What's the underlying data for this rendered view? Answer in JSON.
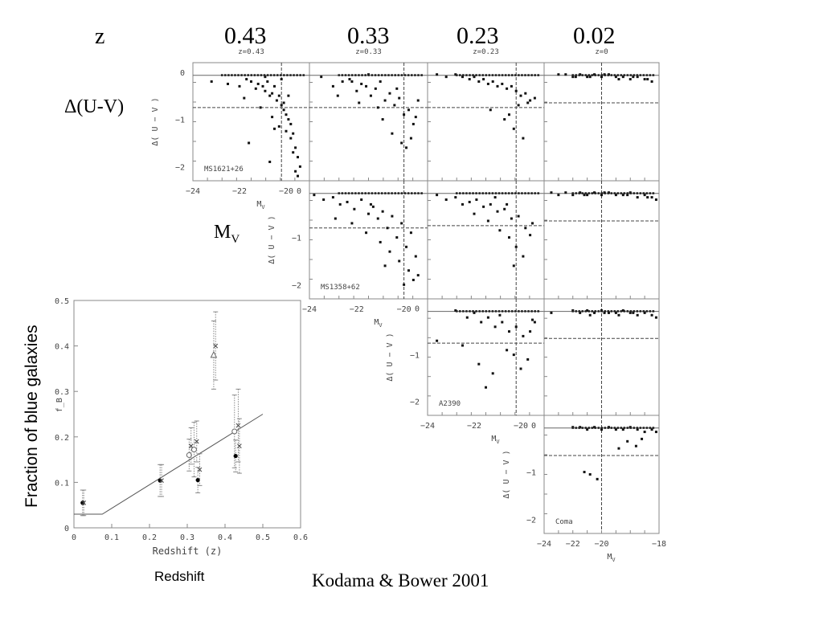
{
  "header": {
    "z_label": "z",
    "redshifts": [
      "0.43",
      "0.33",
      "0.23",
      "0.02"
    ],
    "panel_z_labels": [
      "z=0.43",
      "z=0.33",
      "z=0.23",
      "z=0"
    ]
  },
  "side_labels": {
    "delta_uv": "Δ(U-V)",
    "mv_main": "M",
    "mv_sub": "V"
  },
  "footer": {
    "citation": "Kodama  & Bower 2001",
    "redshift_caption": "Redshift"
  },
  "panel_axes": {
    "ylabel": "Δ( U − V )",
    "xlabel": "M",
    "xlabel_sub": "V",
    "yticks": [
      "0",
      "−1",
      "−2"
    ],
    "xticks": [
      "−24",
      "−22",
      "−20",
      "−18"
    ]
  },
  "clusters": [
    {
      "name": "MS1621+26",
      "z": "0.43"
    },
    {
      "name": "MS1358+62",
      "z": "0.33"
    },
    {
      "name": "A2390",
      "z": "0.23"
    },
    {
      "name": "Coma",
      "z": "0.02"
    }
  ],
  "chart_data": [
    {
      "type": "scatter",
      "xlabel": "Redshift (z)",
      "ylabel": "Fraction of blue galaxies",
      "ylabel_inner": "f_B",
      "xlim": [
        0,
        0.6
      ],
      "ylim": [
        0,
        0.5
      ],
      "xticks": [
        "0",
        "0.1",
        "0.2",
        "0.3",
        "0.4",
        "0.5",
        "0.6"
      ],
      "yticks": [
        "0",
        "0.1",
        "0.2",
        "0.3",
        "0.4",
        "0.5"
      ],
      "points": [
        {
          "x": 0.023,
          "y": 0.055,
          "err": 0.028,
          "marker": "filled-circle"
        },
        {
          "x": 0.026,
          "y": 0.055,
          "err": 0.028,
          "marker": "cross"
        },
        {
          "x": 0.228,
          "y": 0.104,
          "err": 0.035,
          "marker": "filled-circle"
        },
        {
          "x": 0.232,
          "y": 0.104,
          "err": 0.035,
          "marker": "cross"
        },
        {
          "x": 0.305,
          "y": 0.16,
          "err": 0.035,
          "marker": "open-circle"
        },
        {
          "x": 0.31,
          "y": 0.18,
          "err": 0.04,
          "marker": "cross"
        },
        {
          "x": 0.318,
          "y": 0.172,
          "err": 0.06,
          "marker": "open-circle"
        },
        {
          "x": 0.325,
          "y": 0.19,
          "err": 0.045,
          "marker": "cross"
        },
        {
          "x": 0.328,
          "y": 0.105,
          "err": 0.028,
          "marker": "filled-circle"
        },
        {
          "x": 0.333,
          "y": 0.128,
          "err": 0.035,
          "marker": "cross"
        },
        {
          "x": 0.37,
          "y": 0.38,
          "err": 0.075,
          "marker": "open-triangle"
        },
        {
          "x": 0.375,
          "y": 0.4,
          "err": 0.075,
          "marker": "cross"
        },
        {
          "x": 0.425,
          "y": 0.212,
          "err": 0.08,
          "marker": "open-circle"
        },
        {
          "x": 0.428,
          "y": 0.158,
          "err": 0.035,
          "marker": "filled-circle"
        },
        {
          "x": 0.435,
          "y": 0.225,
          "err": 0.08,
          "marker": "cross"
        },
        {
          "x": 0.438,
          "y": 0.18,
          "err": 0.06,
          "marker": "cross"
        }
      ],
      "model_line": {
        "x": [
          0.0,
          0.075,
          0.5
        ],
        "y": [
          0.03,
          0.03,
          0.25
        ]
      }
    },
    {
      "type": "scatter",
      "title": "MS1621+26",
      "z_label": "z=0.43",
      "xlabel": "M_V",
      "ylabel": "Δ(U−V)",
      "xlim": [
        -24,
        -19
      ],
      "ylim": [
        -2.3,
        0.2
      ],
      "x": [
        -23.2,
        -22.5,
        -22.0,
        -21.7,
        -21.5,
        -21.3,
        -21.2,
        -21.0,
        -20.9,
        -20.8,
        -20.7,
        -20.6,
        -20.5,
        -20.4,
        -20.3,
        -20.2,
        -20.1,
        -20.0,
        -19.9,
        -19.8,
        -19.7,
        -19.6,
        -19.5,
        -19.4,
        -21.8,
        -21.1,
        -20.6,
        -20.3,
        -20.0,
        -19.8,
        -19.6,
        -20.9,
        -20.2,
        -19.9,
        -19.7,
        -20.5,
        -19.5,
        -21.6,
        -20.7,
        -20.1
      ],
      "y": [
        -0.2,
        -0.25,
        -0.3,
        -0.15,
        -0.2,
        -0.35,
        -0.25,
        -0.3,
        -0.4,
        -0.2,
        -0.5,
        -0.45,
        -0.3,
        -0.6,
        -0.5,
        -0.7,
        -0.8,
        -0.9,
        -1.0,
        -1.1,
        -1.3,
        -1.6,
        -1.8,
        -2.0,
        -0.55,
        -0.75,
        -0.95,
        -1.15,
        -1.25,
        -1.4,
        -2.1,
        -0.1,
        -0.15,
        -0.5,
        -1.7,
        -1.2,
        -2.2,
        -1.5,
        -1.9,
        -0.65
      ],
      "red_sequence_y": 0.0,
      "blue_cut_y": -0.75,
      "mag_limit_x": -20.2
    },
    {
      "type": "scatter",
      "title": "",
      "z_label": "z=0.33",
      "xlabel": "M_V",
      "ylabel": "Δ(U−V)",
      "xlim": [
        -24,
        -19
      ],
      "ylim": [
        -2.3,
        0.2
      ],
      "x": [
        -23.5,
        -23.0,
        -22.6,
        -22.3,
        -22.0,
        -21.8,
        -21.6,
        -21.4,
        -21.2,
        -21.0,
        -20.8,
        -20.6,
        -20.4,
        -20.2,
        -20.0,
        -19.8,
        -19.6,
        -19.4,
        -22.8,
        -21.9,
        -21.1,
        -20.5,
        -20.1,
        -19.7,
        -21.5,
        -20.9,
        -20.3,
        -19.9,
        -19.5,
        -22.2
      ],
      "y": [
        -0.1,
        -0.3,
        -0.2,
        -0.15,
        -0.4,
        -0.25,
        -0.3,
        -0.5,
        -0.35,
        -0.2,
        -0.6,
        -0.45,
        -0.7,
        -0.55,
        -0.9,
        -0.8,
        -1.1,
        -0.6,
        -0.5,
        -0.65,
        -0.75,
        -1.3,
        -1.5,
        -1.4,
        -0.05,
        -1.0,
        -0.35,
        -1.6,
        -0.95,
        -0.2
      ],
      "red_sequence_y": 0.0,
      "blue_cut_y": -0.75,
      "mag_limit_x": -20.0
    },
    {
      "type": "scatter",
      "title": "",
      "z_label": "z=0.23",
      "xlabel": "M_V",
      "ylabel": "Δ(U−V)",
      "xlim": [
        -24,
        -19
      ],
      "ylim": [
        -2.3,
        0.2
      ],
      "x": [
        -23.6,
        -23.2,
        -22.8,
        -22.5,
        -22.2,
        -22.0,
        -21.8,
        -21.6,
        -21.4,
        -21.2,
        -21.0,
        -20.8,
        -20.6,
        -20.4,
        -20.2,
        -20.0,
        -19.8,
        -19.6,
        -19.4,
        -21.3,
        -20.7,
        -20.3,
        -20.1,
        -19.9,
        -19.7,
        -20.5
      ],
      "y": [
        -0.05,
        -0.1,
        -0.05,
        -0.1,
        -0.15,
        -0.1,
        -0.2,
        -0.15,
        -0.25,
        -0.2,
        -0.3,
        -0.25,
        -0.35,
        -0.3,
        -0.4,
        -0.5,
        -0.45,
        -0.6,
        -0.55,
        -0.8,
        -1.0,
        -1.2,
        -0.7,
        -1.4,
        -0.65,
        -0.9
      ],
      "red_sequence_y": 0.0,
      "blue_cut_y": -0.75,
      "mag_limit_x": -20.2
    },
    {
      "type": "scatter",
      "title": "",
      "z_label": "z=0",
      "xlabel": "M_V",
      "ylabel": "Δ(U−V)",
      "xlim": [
        -24,
        -16
      ],
      "ylim": [
        -2.3,
        0.2
      ],
      "x": [
        -23.0,
        -22.5,
        -22.0,
        -21.5,
        -21.0,
        -20.5,
        -20.0,
        -19.5,
        -19.0,
        -18.5,
        -18.0,
        -17.5,
        -17.0,
        -16.5,
        -21.8,
        -20.8,
        -19.8,
        -18.8,
        -17.8,
        -16.8
      ],
      "y": [
        -0.05,
        -0.05,
        -0.1,
        -0.05,
        -0.1,
        -0.05,
        -0.1,
        -0.05,
        -0.1,
        -0.1,
        -0.15,
        -0.1,
        -0.15,
        -0.2,
        -0.1,
        -0.1,
        -0.05,
        -0.15,
        -0.1,
        -0.15
      ],
      "red_sequence_y": 0.0,
      "blue_cut_y": -0.65,
      "mag_limit_x": -20.0
    },
    {
      "type": "scatter",
      "title": "MS1358+62",
      "z_label": "",
      "xlabel": "M_V",
      "ylabel": "Δ(U−V)",
      "xlim": [
        -24,
        -19
      ],
      "ylim": [
        -2.3,
        0.2
      ],
      "x": [
        -23.8,
        -23.4,
        -23.0,
        -22.7,
        -22.4,
        -22.1,
        -21.8,
        -21.5,
        -21.3,
        -21.1,
        -20.9,
        -20.7,
        -20.5,
        -20.3,
        -20.1,
        -19.9,
        -19.7,
        -19.5,
        -22.9,
        -22.2,
        -21.6,
        -21.0,
        -20.6,
        -20.2,
        -19.8,
        -19.6,
        -21.4,
        -20.8,
        -20.0,
        -19.4
      ],
      "y": [
        -0.1,
        -0.2,
        -0.15,
        -0.3,
        -0.25,
        -0.4,
        -0.2,
        -0.5,
        -0.35,
        -0.6,
        -0.45,
        -0.8,
        -0.55,
        -1.0,
        -0.7,
        -1.2,
        -0.9,
        -1.4,
        -0.6,
        -0.7,
        -0.9,
        -1.1,
        -1.3,
        -1.5,
        -1.7,
        -1.9,
        -0.3,
        -1.6,
        -2.0,
        -1.8
      ],
      "red_sequence_y": 0.0,
      "blue_cut_y": -0.8,
      "mag_limit_x": -20.0
    },
    {
      "type": "scatter",
      "title": "",
      "z_label": "",
      "xlabel": "M_V",
      "ylabel": "Δ(U−V)",
      "xlim": [
        -24,
        -19
      ],
      "ylim": [
        -2.3,
        0.2
      ],
      "x": [
        -23.6,
        -23.2,
        -22.8,
        -22.5,
        -22.2,
        -21.9,
        -21.6,
        -21.3,
        -21.0,
        -20.7,
        -20.4,
        -20.1,
        -19.8,
        -19.5,
        -22.0,
        -21.4,
        -20.9,
        -20.5,
        -20.2,
        -19.9,
        -19.6,
        -21.1,
        -20.6,
        -20.3
      ],
      "y": [
        -0.1,
        -0.2,
        -0.15,
        -0.3,
        -0.25,
        -0.2,
        -0.35,
        -0.3,
        -0.45,
        -0.4,
        -0.6,
        -0.55,
        -0.8,
        -0.7,
        -0.5,
        -0.65,
        -0.85,
        -1.0,
        -1.2,
        -1.4,
        -0.95,
        -0.15,
        -0.3,
        -1.6
      ],
      "red_sequence_y": 0.0,
      "blue_cut_y": -0.75,
      "mag_limit_x": -20.2
    },
    {
      "type": "scatter",
      "title": "",
      "z_label": "",
      "xlabel": "M_V",
      "ylabel": "Δ(U−V)",
      "xlim": [
        -24,
        -16
      ],
      "ylim": [
        -2.3,
        0.2
      ],
      "x": [
        -23.5,
        -23.0,
        -22.5,
        -22.0,
        -21.5,
        -21.0,
        -20.5,
        -20.0,
        -19.5,
        -19.0,
        -18.5,
        -18.0,
        -17.5,
        -17.0,
        -16.5,
        -16.2,
        -21.2,
        -19.8,
        -18.2,
        -16.8
      ],
      "y": [
        -0.05,
        -0.1,
        -0.05,
        -0.1,
        -0.05,
        -0.1,
        -0.05,
        -0.1,
        -0.05,
        -0.1,
        -0.1,
        -0.05,
        -0.15,
        -0.1,
        -0.15,
        -0.2,
        -0.1,
        -0.05,
        -0.1,
        -0.15
      ],
      "red_sequence_y": 0.0,
      "blue_cut_y": -0.65,
      "mag_limit_x": -20.0
    },
    {
      "type": "scatter",
      "title": "A2390",
      "z_label": "",
      "xlabel": "M_V",
      "ylabel": "Δ(U−V)",
      "xlim": [
        -24,
        -19
      ],
      "ylim": [
        -2.3,
        0.2
      ],
      "x": [
        -23.6,
        -22.8,
        -22.3,
        -22.0,
        -21.7,
        -21.4,
        -21.1,
        -20.8,
        -20.5,
        -20.2,
        -19.9,
        -19.6,
        -19.4,
        -22.5,
        -21.8,
        -21.2,
        -20.6,
        -20.3,
        -20.0,
        -19.7,
        -21.5,
        -20.9,
        -19.5
      ],
      "y": [
        -0.7,
        -0.05,
        -0.2,
        -0.1,
        -0.3,
        -0.2,
        -0.4,
        -0.3,
        -0.5,
        -0.4,
        -0.6,
        -0.5,
        -0.3,
        -0.8,
        -1.2,
        -1.4,
        -0.9,
        -1.0,
        -1.3,
        -1.1,
        -1.7,
        -0.15,
        -0.25
      ],
      "red_sequence_y": 0.0,
      "blue_cut_y": -0.75,
      "mag_limit_x": -20.2
    },
    {
      "type": "scatter",
      "title": "",
      "z_label": "",
      "xlabel": "M_V",
      "ylabel": "Δ(U−V)",
      "xlim": [
        -24,
        -16
      ],
      "ylim": [
        -2.3,
        0.2
      ],
      "x": [
        -23.5,
        -22.0,
        -21.5,
        -21.0,
        -20.5,
        -20.0,
        -19.5,
        -19.0,
        -18.5,
        -18.0,
        -17.5,
        -17.0,
        -16.5,
        -16.2,
        -20.8,
        -19.8,
        -18.8,
        -17.8
      ],
      "y": [
        -0.1,
        -0.05,
        -0.1,
        -0.05,
        -0.1,
        -0.05,
        -0.1,
        -0.1,
        -0.05,
        -0.1,
        -0.15,
        -0.1,
        -0.15,
        -0.2,
        -0.15,
        -0.1,
        -0.15,
        -0.1
      ],
      "red_sequence_y": 0.0,
      "blue_cut_y": -0.65,
      "mag_limit_x": -20.0
    },
    {
      "type": "scatter",
      "title": "Coma",
      "z_label": "",
      "xlabel": "M_V",
      "ylabel": "Δ(U−V)",
      "xlim": [
        -24,
        -16
      ],
      "ylim": [
        -2.3,
        0.2
      ],
      "x": [
        -22.0,
        -21.5,
        -21.0,
        -20.5,
        -20.0,
        -19.5,
        -19.0,
        -18.5,
        -18.0,
        -17.5,
        -17.0,
        -16.5,
        -16.2,
        -21.2,
        -20.8,
        -20.3,
        -18.8,
        -18.2,
        -17.6,
        -17.2
      ],
      "y": [
        -0.05,
        -0.05,
        -0.1,
        -0.05,
        -0.1,
        -0.05,
        -0.1,
        -0.1,
        -0.05,
        -0.1,
        -0.15,
        -0.1,
        -0.15,
        -1.0,
        -1.05,
        -1.15,
        -0.5,
        -0.35,
        -0.45,
        -0.3
      ],
      "red_sequence_y": 0.0,
      "blue_cut_y": -0.65,
      "mag_limit_x": -20.0
    }
  ]
}
